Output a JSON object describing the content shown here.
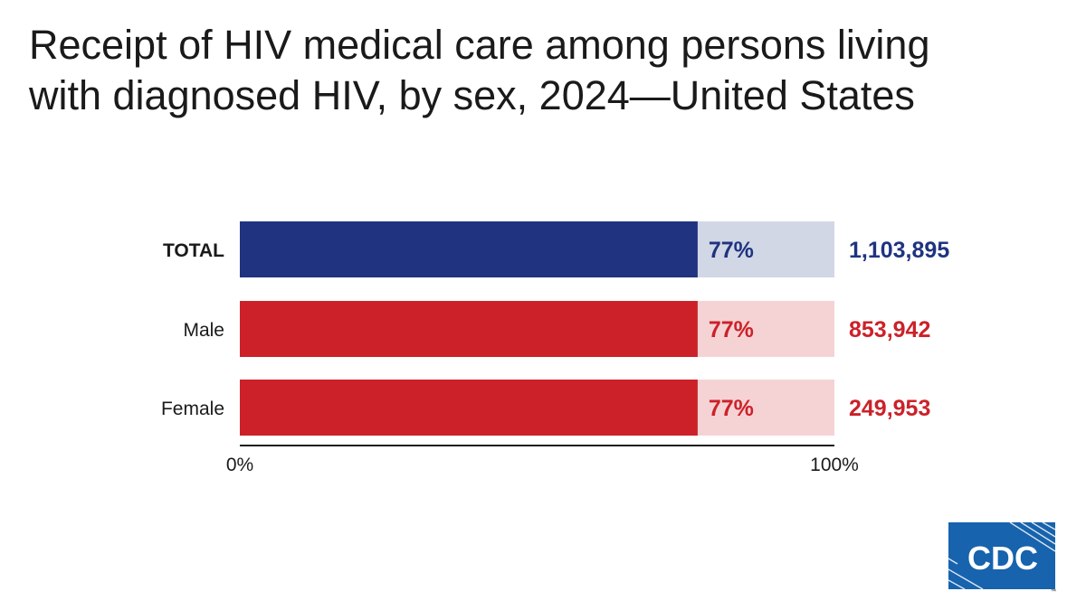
{
  "title_lines": [
    "Receipt of HIV medical care among persons living",
    "with diagnosed HIV, by sex, 2024—United States"
  ],
  "logo": {
    "text": "CDC",
    "icon": "cdc-logo-icon",
    "trademark": "™"
  },
  "colors": {
    "total_fill": "#1f3380",
    "total_bg": "#d1d7e5",
    "sex_fill": "#cc2129",
    "sex_bg": "#f5d3d5",
    "text": "#1a1a1a",
    "logo_blue": "#1763ad"
  },
  "chart_data": {
    "type": "bar",
    "orientation": "horizontal",
    "stacked_to": 100,
    "categories": [
      "TOTAL",
      "Male",
      "Female"
    ],
    "values": [
      77,
      77,
      77
    ],
    "value_labels": [
      "77%",
      "77%",
      "77%"
    ],
    "totals": [
      "1,103,895",
      "853,942",
      "249,953"
    ],
    "xlim": [
      0,
      100
    ],
    "xticks": [
      "0%",
      "100%"
    ],
    "grid": false,
    "legend": "none"
  }
}
